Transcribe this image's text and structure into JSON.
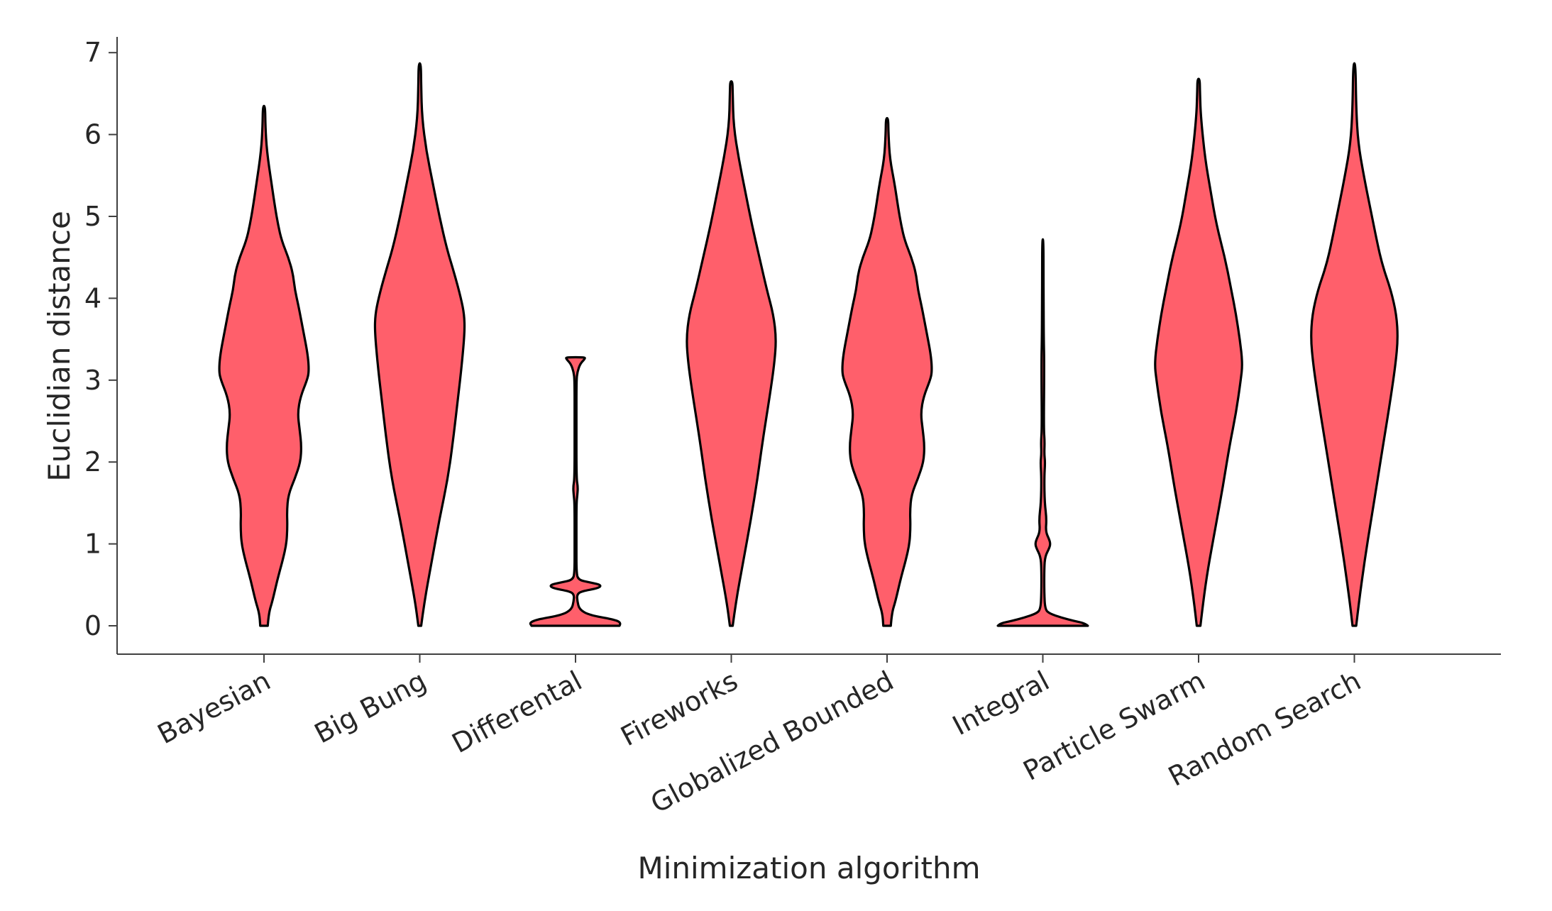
{
  "chart_data": {
    "type": "violin",
    "title": "",
    "xlabel": "Minimization algorithm",
    "ylabel": "Euclidian distance",
    "ylim": [
      -0.35,
      7.2
    ],
    "yticks": [
      0,
      1,
      2,
      3,
      4,
      5,
      6,
      7
    ],
    "grid": false,
    "legend": "none",
    "fill_color": "#ff5f6b",
    "edge_color": "#000000",
    "categories": [
      "Bayesian",
      "Big Bung",
      "Differental",
      "Fireworks",
      "Globalized Bounded",
      "Integral",
      "Particle Swarm",
      "Random Search"
    ],
    "violins": [
      {
        "name": "Bayesian",
        "profile": [
          [
            0,
            0.08
          ],
          [
            0.15,
            0.1
          ],
          [
            0.3,
            0.18
          ],
          [
            0.55,
            0.28
          ],
          [
            0.8,
            0.4
          ],
          [
            1.0,
            0.48
          ],
          [
            1.2,
            0.5
          ],
          [
            1.4,
            0.49
          ],
          [
            1.6,
            0.52
          ],
          [
            1.8,
            0.66
          ],
          [
            2.0,
            0.78
          ],
          [
            2.2,
            0.8
          ],
          [
            2.4,
            0.76
          ],
          [
            2.6,
            0.72
          ],
          [
            2.8,
            0.78
          ],
          [
            3.0,
            0.92
          ],
          [
            3.1,
            0.96
          ],
          [
            3.3,
            0.94
          ],
          [
            3.6,
            0.84
          ],
          [
            3.9,
            0.74
          ],
          [
            4.1,
            0.66
          ],
          [
            4.3,
            0.62
          ],
          [
            4.5,
            0.52
          ],
          [
            4.7,
            0.38
          ],
          [
            4.9,
            0.3
          ],
          [
            5.1,
            0.24
          ],
          [
            5.4,
            0.16
          ],
          [
            5.8,
            0.06
          ],
          [
            6.1,
            0.03
          ],
          [
            6.35,
            0.025
          ]
        ]
      },
      {
        "name": "Big Bung",
        "profile": [
          [
            0,
            0.03
          ],
          [
            0.3,
            0.1
          ],
          [
            0.8,
            0.26
          ],
          [
            1.3,
            0.42
          ],
          [
            1.8,
            0.6
          ],
          [
            2.3,
            0.72
          ],
          [
            2.8,
            0.82
          ],
          [
            3.2,
            0.9
          ],
          [
            3.6,
            0.96
          ],
          [
            3.8,
            0.95
          ],
          [
            4.0,
            0.88
          ],
          [
            4.3,
            0.74
          ],
          [
            4.6,
            0.58
          ],
          [
            5.0,
            0.42
          ],
          [
            5.4,
            0.28
          ],
          [
            5.8,
            0.14
          ],
          [
            6.2,
            0.05
          ],
          [
            6.6,
            0.03
          ],
          [
            6.87,
            0.025
          ]
        ]
      },
      {
        "name": "Differental",
        "profile": [
          [
            0,
            0.94
          ],
          [
            0.04,
            0.98
          ],
          [
            0.08,
            0.8
          ],
          [
            0.13,
            0.3
          ],
          [
            0.2,
            0.08
          ],
          [
            0.3,
            0.04
          ],
          [
            0.38,
            0.03
          ],
          [
            0.42,
            0.12
          ],
          [
            0.46,
            0.5
          ],
          [
            0.5,
            0.55
          ],
          [
            0.53,
            0.3
          ],
          [
            0.56,
            0.06
          ],
          [
            0.65,
            0.02
          ],
          [
            1.0,
            0.02
          ],
          [
            1.5,
            0.02
          ],
          [
            1.6,
            0.04
          ],
          [
            1.7,
            0.05
          ],
          [
            1.8,
            0.02
          ],
          [
            2.5,
            0.02
          ],
          [
            3.0,
            0.02
          ],
          [
            3.1,
            0.04
          ],
          [
            3.2,
            0.1
          ],
          [
            3.26,
            0.2
          ],
          [
            3.28,
            0.2
          ]
        ]
      },
      {
        "name": "Fireworks",
        "profile": [
          [
            0,
            0.03
          ],
          [
            0.3,
            0.1
          ],
          [
            0.8,
            0.26
          ],
          [
            1.3,
            0.42
          ],
          [
            1.8,
            0.56
          ],
          [
            2.3,
            0.68
          ],
          [
            2.8,
            0.82
          ],
          [
            3.2,
            0.92
          ],
          [
            3.5,
            0.96
          ],
          [
            3.8,
            0.9
          ],
          [
            4.1,
            0.76
          ],
          [
            4.5,
            0.6
          ],
          [
            4.9,
            0.44
          ],
          [
            5.3,
            0.3
          ],
          [
            5.7,
            0.16
          ],
          [
            6.1,
            0.05
          ],
          [
            6.5,
            0.03
          ],
          [
            6.65,
            0.025
          ]
        ]
      },
      {
        "name": "Globalized Bounded",
        "profile": [
          [
            0,
            0.08
          ],
          [
            0.15,
            0.1
          ],
          [
            0.3,
            0.18
          ],
          [
            0.55,
            0.28
          ],
          [
            0.8,
            0.4
          ],
          [
            1.0,
            0.48
          ],
          [
            1.2,
            0.5
          ],
          [
            1.4,
            0.49
          ],
          [
            1.6,
            0.52
          ],
          [
            1.8,
            0.66
          ],
          [
            2.0,
            0.78
          ],
          [
            2.2,
            0.8
          ],
          [
            2.4,
            0.76
          ],
          [
            2.6,
            0.72
          ],
          [
            2.8,
            0.78
          ],
          [
            3.0,
            0.92
          ],
          [
            3.1,
            0.96
          ],
          [
            3.3,
            0.94
          ],
          [
            3.6,
            0.84
          ],
          [
            3.9,
            0.74
          ],
          [
            4.1,
            0.66
          ],
          [
            4.3,
            0.62
          ],
          [
            4.5,
            0.52
          ],
          [
            4.7,
            0.38
          ],
          [
            4.9,
            0.3
          ],
          [
            5.1,
            0.24
          ],
          [
            5.4,
            0.16
          ],
          [
            5.7,
            0.06
          ],
          [
            6.0,
            0.03
          ],
          [
            6.2,
            0.025
          ]
        ]
      },
      {
        "name": "Integral",
        "profile": [
          [
            0,
            0.96
          ],
          [
            0.03,
            0.9
          ],
          [
            0.06,
            0.66
          ],
          [
            0.1,
            0.4
          ],
          [
            0.15,
            0.14
          ],
          [
            0.2,
            0.05
          ],
          [
            0.4,
            0.03
          ],
          [
            0.7,
            0.03
          ],
          [
            0.85,
            0.05
          ],
          [
            0.95,
            0.14
          ],
          [
            1.0,
            0.16
          ],
          [
            1.05,
            0.14
          ],
          [
            1.15,
            0.06
          ],
          [
            1.3,
            0.08
          ],
          [
            1.5,
            0.04
          ],
          [
            1.8,
            0.03
          ],
          [
            2.0,
            0.05
          ],
          [
            2.1,
            0.03
          ],
          [
            2.25,
            0.04
          ],
          [
            2.4,
            0.02
          ],
          [
            3.2,
            0.03
          ],
          [
            3.5,
            0.02
          ],
          [
            4.0,
            0.015
          ],
          [
            4.3,
            0.015
          ],
          [
            4.72,
            0.012
          ]
        ]
      },
      {
        "name": "Particle Swarm",
        "profile": [
          [
            0,
            0.04
          ],
          [
            0.3,
            0.1
          ],
          [
            0.7,
            0.2
          ],
          [
            1.2,
            0.36
          ],
          [
            1.7,
            0.52
          ],
          [
            2.2,
            0.66
          ],
          [
            2.6,
            0.8
          ],
          [
            3.0,
            0.9
          ],
          [
            3.2,
            0.94
          ],
          [
            3.5,
            0.88
          ],
          [
            3.8,
            0.8
          ],
          [
            4.1,
            0.7
          ],
          [
            4.5,
            0.56
          ],
          [
            4.9,
            0.38
          ],
          [
            5.3,
            0.26
          ],
          [
            5.7,
            0.14
          ],
          [
            6.2,
            0.05
          ],
          [
            6.5,
            0.03
          ],
          [
            6.68,
            0.025
          ]
        ]
      },
      {
        "name": "Random Search",
        "profile": [
          [
            0,
            0.04
          ],
          [
            0.3,
            0.1
          ],
          [
            0.8,
            0.22
          ],
          [
            1.3,
            0.36
          ],
          [
            1.8,
            0.5
          ],
          [
            2.3,
            0.64
          ],
          [
            2.8,
            0.78
          ],
          [
            3.2,
            0.88
          ],
          [
            3.5,
            0.93
          ],
          [
            3.8,
            0.9
          ],
          [
            4.1,
            0.78
          ],
          [
            4.4,
            0.6
          ],
          [
            4.7,
            0.48
          ],
          [
            5.1,
            0.34
          ],
          [
            5.5,
            0.2
          ],
          [
            5.9,
            0.08
          ],
          [
            6.3,
            0.04
          ],
          [
            6.87,
            0.025
          ]
        ]
      }
    ]
  }
}
